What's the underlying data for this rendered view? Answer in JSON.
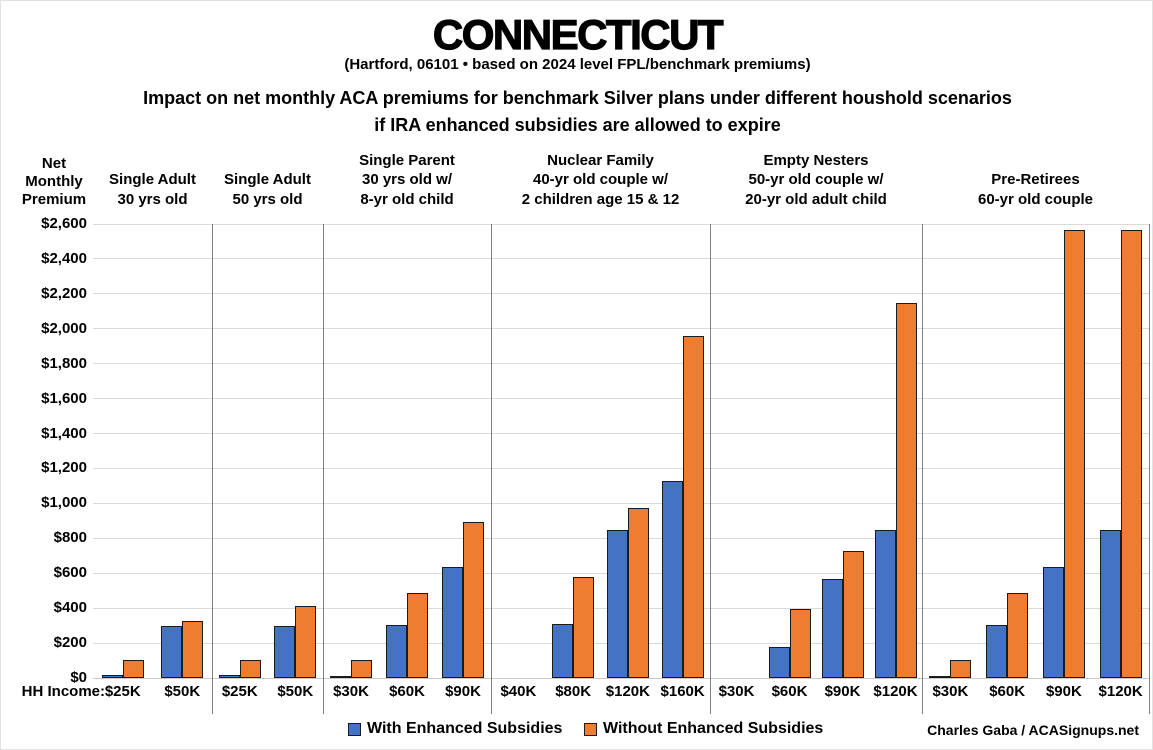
{
  "header": {
    "title": "CONNECTICUT",
    "subtitle": "(Hartford, 06101 • based on 2024 level FPL/benchmark premiums)",
    "description_line1": "Impact on net monthly ACA premiums for benchmark Silver plans under different houshold scenarios",
    "description_line2": "if IRA enhanced subsidies are allowed to expire"
  },
  "axis": {
    "y_title": "Net\nMonthly\nPremium",
    "x_label": "HH Income:",
    "y_tick_labels": [
      "$0",
      "$200",
      "$400",
      "$600",
      "$800",
      "$1,000",
      "$1,200",
      "$1,400",
      "$1,600",
      "$1,800",
      "$2,000",
      "$2,200",
      "$2,400",
      "$2,600"
    ]
  },
  "legend": {
    "items": [
      {
        "label": "With Enhanced Subsidies",
        "color": "#4472C4"
      },
      {
        "label": "Without Enhanced Subsidies",
        "color": "#ED7D31"
      }
    ]
  },
  "credit": "Charles Gaba / ACASignups.net",
  "colors": {
    "with_subsidies": "#4472C4",
    "without_subsidies": "#ED7D31",
    "bar_outline": "#1b1b1b",
    "gridline": "#DADADA",
    "baseline": "#C9C9C9",
    "separator": "#7F7F7F"
  },
  "chart_data": {
    "type": "bar",
    "title": "Impact on net monthly ACA premiums for benchmark Silver plans under different houshold scenarios if IRA enhanced subsidies are allowed to expire",
    "xlabel": "HH Income",
    "ylabel": "Net Monthly Premium",
    "ylim": [
      0,
      2600
    ],
    "y_tick_step": 200,
    "grid": true,
    "legend_position": "bottom",
    "series_names": [
      "With Enhanced Subsidies",
      "Without Enhanced Subsidies"
    ],
    "groups": [
      {
        "label": "Single Adult\n30 yrs old",
        "categories": [
          "$25K",
          "$50K"
        ],
        "series": [
          {
            "name": "With Enhanced Subsidies",
            "values": [
              20,
              295
            ]
          },
          {
            "name": "Without Enhanced Subsidies",
            "values": [
              105,
              325
            ]
          }
        ]
      },
      {
        "label": "Single Adult\n50 yrs old",
        "categories": [
          "$25K",
          "$50K"
        ],
        "series": [
          {
            "name": "With Enhanced Subsidies",
            "values": [
              20,
              295
            ]
          },
          {
            "name": "Without Enhanced Subsidies",
            "values": [
              105,
              410
            ]
          }
        ]
      },
      {
        "label": "Single Parent\n30 yrs old w/\n8-yr old child",
        "categories": [
          "$30K",
          "$60K",
          "$90K"
        ],
        "series": [
          {
            "name": "With Enhanced Subsidies",
            "values": [
              10,
              305,
              635
            ]
          },
          {
            "name": "Without Enhanced Subsidies",
            "values": [
              105,
              485,
              895
            ]
          }
        ]
      },
      {
        "label": "Nuclear Family\n40-yr old couple w/\n2 children age 15 & 12",
        "categories": [
          "$40K",
          "$80K",
          "$120K",
          "$160K"
        ],
        "series": [
          {
            "name": "With Enhanced Subsidies",
            "values": [
              0,
              310,
              845,
              1130
            ]
          },
          {
            "name": "Without Enhanced Subsidies",
            "values": [
              0,
              580,
              975,
              1960
            ]
          }
        ]
      },
      {
        "label": "Empty Nesters\n50-yr old couple w/\n20-yr old adult child",
        "categories": [
          "$30K",
          "$60K",
          "$90K",
          "$120K"
        ],
        "series": [
          {
            "name": "With Enhanced Subsidies",
            "values": [
              0,
              175,
              565,
              845
            ]
          },
          {
            "name": "Without Enhanced Subsidies",
            "values": [
              0,
              395,
              730,
              2145
            ]
          }
        ]
      },
      {
        "label": "Pre-Retirees\n60-yr old couple",
        "categories": [
          "$30K",
          "$60K",
          "$90K",
          "$120K"
        ],
        "series": [
          {
            "name": "With Enhanced Subsidies",
            "values": [
              10,
              305,
              635,
              845
            ]
          },
          {
            "name": "Without Enhanced Subsidies",
            "values": [
              105,
              485,
              2565,
              2565
            ]
          }
        ]
      }
    ]
  }
}
